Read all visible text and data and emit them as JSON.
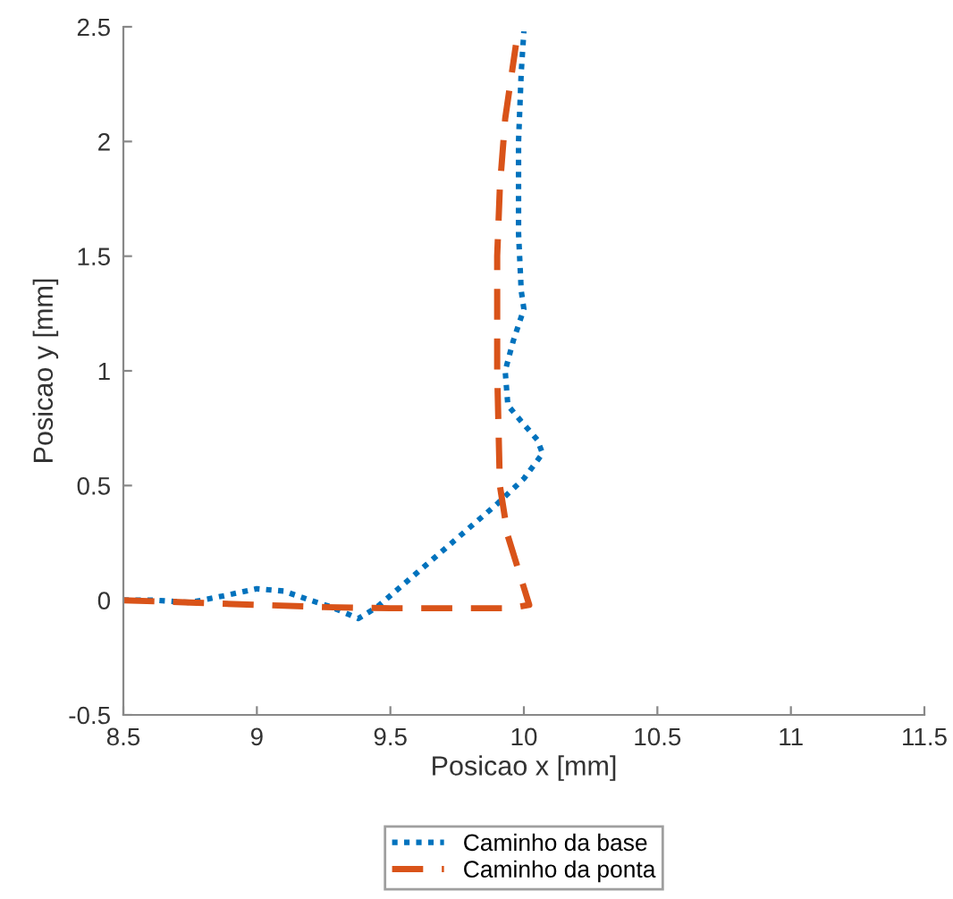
{
  "chart_data": {
    "type": "line",
    "xlabel": "Posicao x [mm]",
    "ylabel": "Posicao y [mm]",
    "xlim": [
      8.5,
      11.5
    ],
    "xticks": [
      8.5,
      9,
      9.5,
      10,
      10.5,
      11,
      11.5
    ],
    "ylim": [
      -0.5,
      2.5
    ],
    "yticks": [
      -0.5,
      0,
      0.5,
      1,
      1.5,
      2,
      2.5
    ],
    "grid": false,
    "legend": "bottom",
    "marker": "none",
    "series": [
      {
        "name": "Caminho da base",
        "color": "#0072bd",
        "line_style": "dotted",
        "x": [
          8.5,
          8.62,
          8.75,
          8.88,
          9.0,
          9.1,
          9.2,
          9.28,
          9.38,
          9.45,
          9.6,
          9.75,
          9.9,
          10.0,
          10.07,
          10.05,
          9.99,
          9.94,
          9.93,
          9.96,
          10.0,
          9.99,
          9.98,
          9.98,
          9.99,
          10.0
        ],
        "values": [
          0,
          0,
          -0.01,
          0.02,
          0.05,
          0.04,
          0.0,
          -0.03,
          -0.08,
          -0.03,
          0.12,
          0.27,
          0.42,
          0.53,
          0.64,
          0.7,
          0.78,
          0.85,
          1.0,
          1.13,
          1.27,
          1.35,
          1.6,
          2.0,
          2.3,
          2.48
        ]
      },
      {
        "name": "Caminho da ponta",
        "color": "#d95319",
        "line_style": "dashed",
        "x": [
          8.5,
          8.75,
          9.0,
          9.25,
          9.5,
          9.75,
          9.95,
          10.02,
          9.94,
          9.91,
          9.9,
          9.9,
          9.91,
          9.93,
          9.97
        ],
        "values": [
          0,
          -0.01,
          -0.02,
          -0.03,
          -0.035,
          -0.035,
          -0.035,
          -0.02,
          0.28,
          0.5,
          1.0,
          1.5,
          1.8,
          2.1,
          2.42
        ]
      }
    ]
  }
}
